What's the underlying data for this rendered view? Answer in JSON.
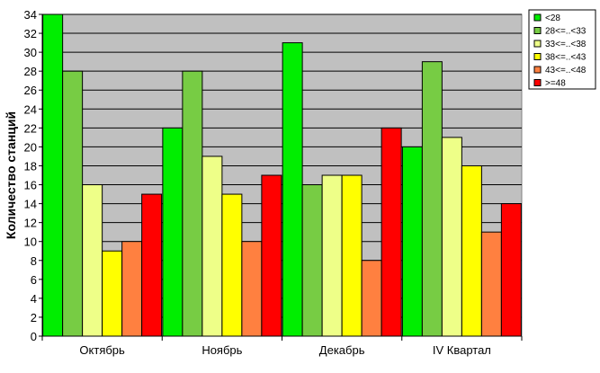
{
  "chart_data": {
    "type": "bar",
    "title": "",
    "xlabel": "",
    "ylabel": "Количество станций",
    "ylim": [
      0,
      34
    ],
    "ytick_step": 2,
    "grid": true,
    "legend_position": "top-right",
    "categories": [
      "Октябрь",
      "Ноябрь",
      "Декабрь",
      "IV Квартал"
    ],
    "series": [
      {
        "name": "<28",
        "color": "#00ee00",
        "values": [
          34,
          22,
          31,
          20
        ]
      },
      {
        "name": "28<=..<33",
        "color": "#77cc44",
        "values": [
          28,
          28,
          16,
          29
        ]
      },
      {
        "name": "33<=..<38",
        "color": "#eeff88",
        "values": [
          16,
          19,
          17,
          21
        ]
      },
      {
        "name": "38<=..<43",
        "color": "#ffff00",
        "values": [
          9,
          15,
          17,
          18
        ]
      },
      {
        "name": "43<=..<48",
        "color": "#ff8040",
        "values": [
          10,
          10,
          8,
          11
        ]
      },
      {
        "name": ">=48",
        "color": "#ff0000",
        "values": [
          15,
          17,
          22,
          14
        ]
      }
    ]
  }
}
